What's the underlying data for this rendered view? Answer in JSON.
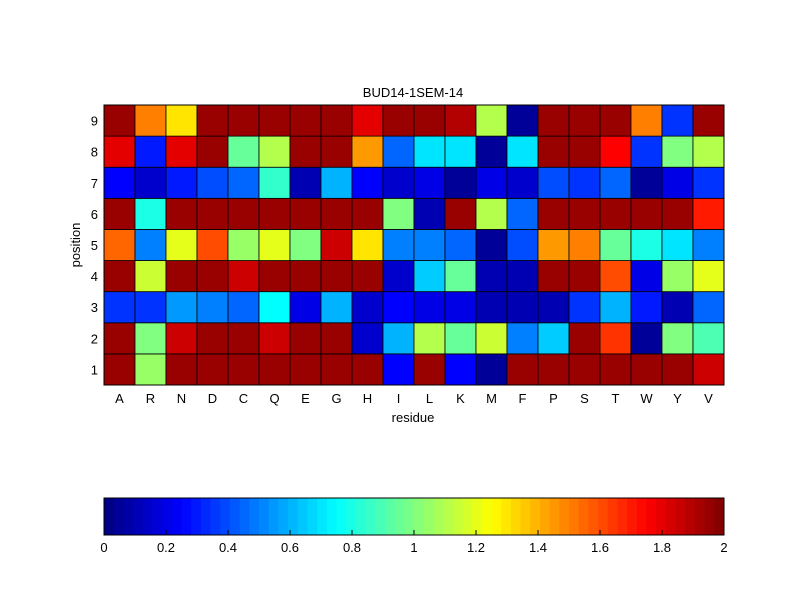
{
  "chart_data": {
    "type": "heatmap",
    "title": "BUD14-1SEM-14",
    "xlabel": "residue",
    "ylabel": "position",
    "x_categories": [
      "A",
      "R",
      "N",
      "D",
      "C",
      "Q",
      "E",
      "G",
      "H",
      "I",
      "L",
      "K",
      "M",
      "F",
      "P",
      "S",
      "T",
      "W",
      "Y",
      "V"
    ],
    "y_categories": [
      "1",
      "2",
      "3",
      "4",
      "5",
      "6",
      "7",
      "8",
      "9"
    ],
    "values_by_position": {
      "1": [
        1.95,
        1.05,
        1.95,
        1.95,
        1.95,
        1.95,
        1.95,
        1.95,
        1.95,
        0.25,
        1.95,
        0.25,
        0.05,
        1.95,
        1.95,
        1.95,
        1.95,
        1.95,
        1.95,
        1.85
      ],
      "2": [
        1.95,
        1.0,
        1.85,
        1.95,
        1.95,
        1.85,
        1.95,
        1.95,
        0.15,
        0.6,
        1.1,
        0.95,
        1.15,
        0.5,
        0.65,
        1.95,
        1.65,
        0.05,
        1.0,
        0.9
      ],
      "3": [
        0.35,
        0.35,
        0.55,
        0.5,
        0.45,
        0.75,
        0.2,
        0.6,
        0.15,
        0.25,
        0.2,
        0.2,
        0.1,
        0.1,
        0.1,
        0.35,
        0.6,
        0.3,
        0.1,
        0.45
      ],
      "4": [
        1.95,
        1.15,
        1.95,
        1.95,
        1.85,
        1.95,
        1.95,
        1.95,
        1.95,
        0.15,
        0.65,
        0.95,
        0.1,
        0.1,
        1.95,
        1.95,
        1.6,
        0.2,
        1.05,
        1.2
      ],
      "5": [
        1.55,
        0.5,
        1.2,
        1.6,
        1.05,
        1.2,
        1.0,
        1.85,
        1.3,
        0.5,
        0.5,
        0.45,
        0.05,
        0.4,
        1.45,
        1.5,
        0.95,
        0.8,
        0.7,
        0.5
      ],
      "6": [
        1.95,
        0.8,
        1.95,
        1.95,
        1.95,
        1.95,
        1.95,
        1.95,
        1.95,
        1.0,
        0.1,
        1.95,
        1.1,
        0.45,
        1.95,
        1.95,
        1.95,
        1.95,
        1.95,
        1.7
      ],
      "7": [
        0.25,
        0.15,
        0.3,
        0.4,
        0.45,
        0.85,
        0.1,
        0.6,
        0.25,
        0.15,
        0.2,
        0.05,
        0.2,
        0.15,
        0.4,
        0.35,
        0.45,
        0.05,
        0.2,
        0.35
      ],
      "8": [
        1.8,
        0.3,
        1.8,
        1.95,
        0.95,
        1.1,
        1.95,
        1.95,
        1.45,
        0.45,
        0.7,
        0.7,
        0.05,
        0.7,
        1.95,
        1.95,
        1.75,
        0.35,
        1.0,
        1.1
      ],
      "9": [
        1.95,
        1.5,
        1.3,
        1.95,
        1.95,
        1.95,
        1.95,
        1.95,
        1.8,
        1.95,
        1.95,
        1.9,
        1.1,
        0.05,
        1.95,
        1.95,
        1.95,
        1.5,
        0.35,
        1.95
      ]
    },
    "colorbar": {
      "min": 0,
      "max": 2,
      "colormap": "jet",
      "tick_values": [
        0,
        0.2,
        0.4,
        0.6,
        0.8,
        1,
        1.2,
        1.4,
        1.6,
        1.8,
        2
      ],
      "tick_labels": [
        "0",
        "0.2",
        "0.4",
        "0.6",
        "0.8",
        "1",
        "1.2",
        "1.4",
        "1.6",
        "1.8",
        "2"
      ]
    }
  }
}
